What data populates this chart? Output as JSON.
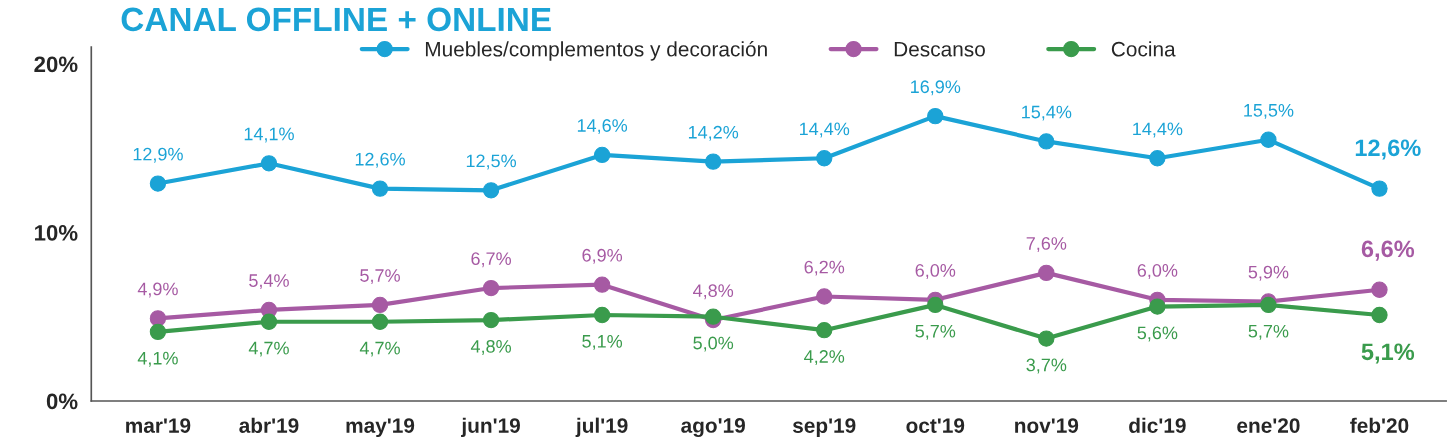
{
  "chart_data": {
    "type": "line",
    "title": "CANAL OFFLINE + ONLINE",
    "categories": [
      "mar'19",
      "abr'19",
      "may'19",
      "jun'19",
      "jul'19",
      "ago'19",
      "sep'19",
      "oct'19",
      "nov'19",
      "dic'19",
      "ene'20",
      "feb'20"
    ],
    "series": [
      {
        "name": "Muebles/complementos y decoración",
        "color": "#1ba3d6",
        "values": [
          12.9,
          14.1,
          12.6,
          12.5,
          14.6,
          14.2,
          14.4,
          16.9,
          15.4,
          14.4,
          15.5,
          12.6
        ],
        "value_labels": [
          "12,9%",
          "14,1%",
          "12,6%",
          "12,5%",
          "14,6%",
          "14,2%",
          "14,4%",
          "16,9%",
          "15,4%",
          "14,4%",
          "15,5%",
          "12,6%"
        ]
      },
      {
        "name": "Descanso",
        "color": "#a65aa3",
        "values": [
          4.9,
          5.4,
          5.7,
          6.7,
          6.9,
          4.8,
          6.2,
          6.0,
          7.6,
          6.0,
          5.9,
          6.6
        ],
        "value_labels": [
          "4,9%",
          "5,4%",
          "5,7%",
          "6,7%",
          "6,9%",
          "4,8%",
          "6,2%",
          "6,0%",
          "7,6%",
          "6,0%",
          "5,9%",
          "6,6%"
        ]
      },
      {
        "name": "Cocina",
        "color": "#3a9b4c",
        "values": [
          4.1,
          4.7,
          4.7,
          4.8,
          5.1,
          5.0,
          4.2,
          5.7,
          3.7,
          5.6,
          5.7,
          5.1
        ],
        "value_labels": [
          "4,1%",
          "4,7%",
          "4,7%",
          "4,8%",
          "5,1%",
          "5,0%",
          "4,2%",
          "5,7%",
          "3,7%",
          "5,6%",
          "5,7%",
          "5,1%"
        ]
      }
    ],
    "ylim": [
      0,
      21
    ],
    "yticks": [
      {
        "value": 0,
        "label": "0%"
      },
      {
        "value": 10,
        "label": "10%"
      },
      {
        "value": 20,
        "label": "20%"
      }
    ],
    "grid": false,
    "legend": "top",
    "marker": "circle",
    "line_style": "solid"
  }
}
